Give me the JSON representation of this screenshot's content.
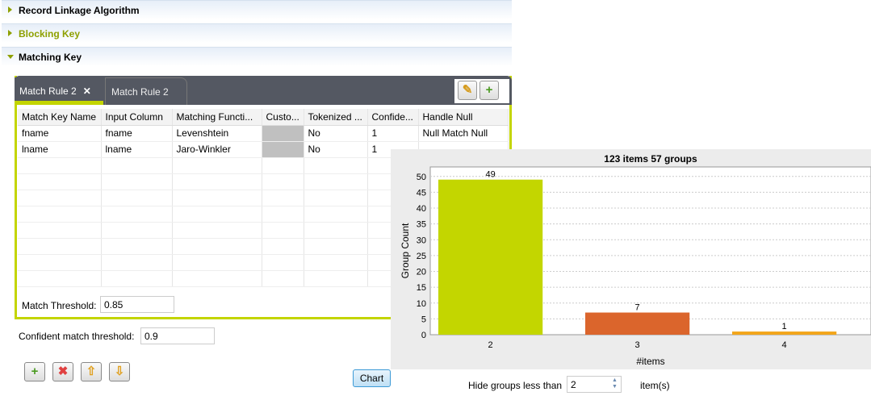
{
  "sections": [
    {
      "label": "Record Linkage Algorithm",
      "expanded": false,
      "color": "#000000"
    },
    {
      "label": "Blocking Key",
      "expanded": false,
      "color": "#8ea000"
    },
    {
      "label": "Matching Key",
      "expanded": true,
      "color": "#000000"
    }
  ],
  "tabs": [
    {
      "label": "Match Rule 2",
      "active": true,
      "close": "✕"
    },
    {
      "label": "Match Rule 2",
      "active": false
    }
  ],
  "toolbar": {
    "edit_icon": "pencil-icon",
    "add_icon": "plus-icon"
  },
  "table": {
    "columns": [
      "Match Key Name",
      "Input Column",
      "Matching Functi...",
      "Custo...",
      "Tokenized ...",
      "Confide...",
      "Handle Null"
    ],
    "rows": [
      [
        "fname",
        "fname",
        "Levenshtein",
        "",
        "No",
        "1",
        "Null Match Null"
      ],
      [
        "lname",
        "lname",
        "Jaro-Winkler",
        "",
        "No",
        "1",
        ""
      ]
    ]
  },
  "match_threshold": {
    "label": "Match Threshold:",
    "value": "0.85"
  },
  "confident_threshold": {
    "label": "Confident match threshold:",
    "value": "0.9"
  },
  "buttons": {
    "add": "plus-icon",
    "remove": "delete-icon",
    "up": "arrow-up-icon",
    "down": "arrow-down-icon",
    "chart": "Chart"
  },
  "hide_groups": {
    "label": "Hide groups less than",
    "value": "2",
    "suffix": "item(s)"
  },
  "chart_data": {
    "type": "bar",
    "title": "123 items 57 groups",
    "xlabel": "#items",
    "ylabel": "Group Count",
    "categories": [
      "2",
      "3",
      "4"
    ],
    "values": [
      49,
      7,
      1
    ],
    "colors": [
      "#c3d600",
      "#db652c",
      "#f2a51a"
    ],
    "ylim": [
      0,
      53
    ],
    "yticks": [
      0,
      5,
      10,
      15,
      20,
      25,
      30,
      35,
      40,
      45,
      50
    ],
    "grid": true
  }
}
